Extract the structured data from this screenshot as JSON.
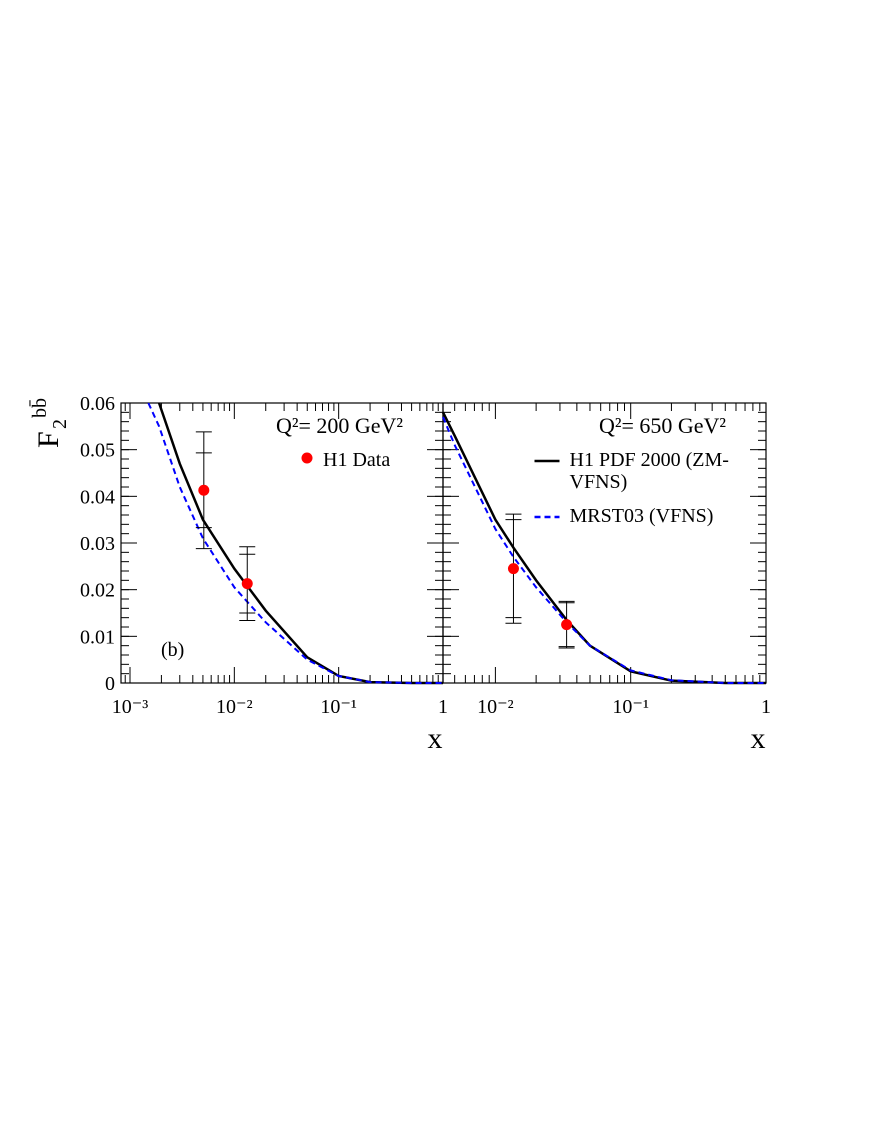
{
  "chart_data": [
    {
      "type": "line",
      "xscale": "log",
      "ylabel": "F",
      "ylabel_subscript": "2",
      "ylabel_superscript": "bb̄",
      "annotation": "Q²= 200 GeV²",
      "label": "(b)",
      "xlabel": "x",
      "xlim": [
        0.00082,
        1
      ],
      "xticks": [
        {
          "value": 0.001,
          "label": "10⁻³"
        },
        {
          "value": 0.01,
          "label": "10⁻²"
        },
        {
          "value": 0.1,
          "label": "10⁻¹"
        },
        1
      ],
      "ylim": [
        0,
        0.06
      ],
      "yticks": [
        0,
        0.01,
        0.02,
        0.03,
        0.04,
        0.05,
        0.06
      ],
      "series": [
        {
          "color": "#000000",
          "style": "solid",
          "x": [
            0.0015,
            0.0019,
            0.003,
            0.005,
            0.01,
            0.02,
            0.05,
            0.1,
            0.2,
            0.5,
            1
          ],
          "values": [
            null,
            0.06,
            0.047,
            0.035,
            0.0245,
            0.0155,
            0.0055,
            0.0015,
            0.0002,
            0,
            0
          ]
        },
        {
          "color": "#0000ff",
          "style": "dashed",
          "x": [
            0.0015,
            0.0019,
            0.003,
            0.005,
            0.01,
            0.02,
            0.05,
            0.1,
            0.2,
            0.5,
            1
          ],
          "values": [
            0.06,
            0.055,
            0.042,
            0.031,
            0.0205,
            0.013,
            0.005,
            0.0015,
            0.0002,
            0,
            0
          ]
        }
      ],
      "points": {
        "name": "H1 Data",
        "color": "#ff0000",
        "x": [
          0.0051,
          0.0133
        ],
        "values": [
          0.0413,
          0.0213
        ],
        "stat_errors": [
          0.008,
          0.0063
        ],
        "total_errors": [
          0.0125,
          0.0079
        ]
      }
    },
    {
      "type": "line",
      "xscale": "log",
      "annotation": "Q²= 650 GeV²",
      "xlabel": "x",
      "xlim": [
        0.0041,
        1
      ],
      "xticks": [
        {
          "value": 0.01,
          "label": "10⁻²"
        },
        {
          "value": 0.1,
          "label": "10⁻¹"
        },
        1
      ],
      "ylim": [
        0,
        0.06
      ],
      "series": [
        {
          "name": "H1 PDF 2000 (ZM-VFNS)",
          "color": "#000000",
          "style": "solid",
          "x": [
            0.0041,
            0.005,
            0.01,
            0.0136,
            0.02,
            0.0336,
            0.05,
            0.1,
            0.2,
            0.5,
            1
          ],
          "values": [
            0.058,
            0.053,
            0.035,
            0.029,
            0.022,
            0.0135,
            0.008,
            0.0025,
            0.0005,
            0,
            0
          ]
        },
        {
          "name": "MRST03 (VFNS)",
          "color": "#0000ff",
          "style": "dashed",
          "x": [
            0.0041,
            0.005,
            0.01,
            0.0136,
            0.02,
            0.0336,
            0.05,
            0.1,
            0.2,
            0.5,
            1
          ],
          "values": [
            0.057,
            0.051,
            0.033,
            0.027,
            0.0205,
            0.013,
            0.008,
            0.0027,
            0.0006,
            0,
            0
          ]
        }
      ],
      "points": {
        "color": "#ff0000",
        "x": [
          0.0136,
          0.0336
        ],
        "values": [
          0.0245,
          0.0125
        ],
        "stat_errors": [
          0.0105,
          0.0047
        ],
        "total_errors": [
          0.0117,
          0.005
        ]
      }
    }
  ]
}
